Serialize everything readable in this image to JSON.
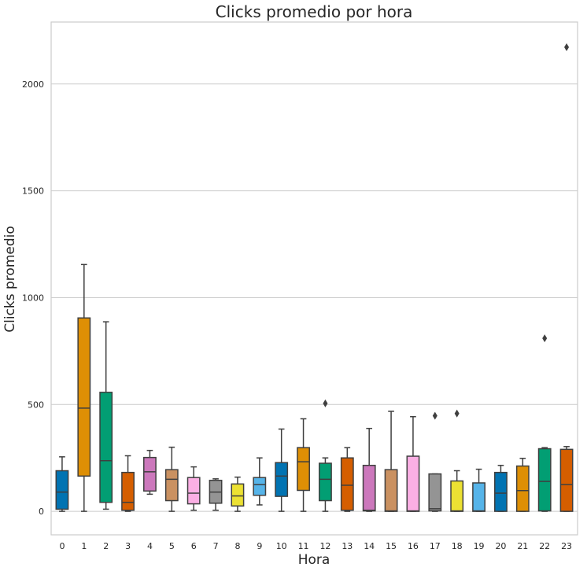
{
  "chart_data": {
    "type": "box",
    "title": "Clicks promedio por hora",
    "xlabel": "Hora",
    "ylabel": "Clicks promedio",
    "ylim": [
      -110,
      2290
    ],
    "yticks": [
      0,
      500,
      1000,
      1500,
      2000
    ],
    "grid": true,
    "categories": [
      "0",
      "1",
      "2",
      "3",
      "4",
      "5",
      "6",
      "7",
      "8",
      "9",
      "10",
      "11",
      "12",
      "13",
      "14",
      "15",
      "16",
      "17",
      "18",
      "19",
      "20",
      "21",
      "22",
      "23"
    ],
    "colors": [
      "#0173b2",
      "#de8f05",
      "#029e73",
      "#d55e00",
      "#cc78bc",
      "#ca9161",
      "#fbafe4",
      "#949494",
      "#ece133",
      "#56b4e9",
      "#0173b2",
      "#de8f05",
      "#029e73",
      "#d55e00",
      "#cc78bc",
      "#ca9161",
      "#fbafe4",
      "#949494",
      "#ece133",
      "#56b4e9",
      "#0173b2",
      "#de8f05",
      "#029e73",
      "#d55e00"
    ],
    "boxes": [
      {
        "min": 0,
        "q1": 10,
        "median": 90,
        "q3": 190,
        "max": 255,
        "outliers": []
      },
      {
        "min": 0,
        "q1": 165,
        "median": 483,
        "q3": 905,
        "max": 1155,
        "outliers": []
      },
      {
        "min": 10,
        "q1": 42,
        "median": 237,
        "q3": 557,
        "max": 887,
        "outliers": []
      },
      {
        "min": 0,
        "q1": 5,
        "median": 42,
        "q3": 182,
        "max": 260,
        "outliers": []
      },
      {
        "min": 80,
        "q1": 95,
        "median": 185,
        "q3": 252,
        "max": 285,
        "outliers": []
      },
      {
        "min": 0,
        "q1": 50,
        "median": 150,
        "q3": 195,
        "max": 300,
        "outliers": []
      },
      {
        "min": 5,
        "q1": 35,
        "median": 85,
        "q3": 158,
        "max": 208,
        "outliers": []
      },
      {
        "min": 5,
        "q1": 38,
        "median": 90,
        "q3": 145,
        "max": 152,
        "outliers": []
      },
      {
        "min": 0,
        "q1": 25,
        "median": 72,
        "q3": 128,
        "max": 160,
        "outliers": []
      },
      {
        "min": 30,
        "q1": 75,
        "median": 125,
        "q3": 158,
        "max": 250,
        "outliers": []
      },
      {
        "min": 0,
        "q1": 70,
        "median": 165,
        "q3": 228,
        "max": 385,
        "outliers": []
      },
      {
        "min": 0,
        "q1": 98,
        "median": 232,
        "q3": 298,
        "max": 433,
        "outliers": []
      },
      {
        "min": 0,
        "q1": 50,
        "median": 150,
        "q3": 225,
        "max": 250,
        "outliers": [
          505
        ]
      },
      {
        "min": 0,
        "q1": 5,
        "median": 122,
        "q3": 250,
        "max": 298,
        "outliers": []
      },
      {
        "min": 0,
        "q1": 2,
        "median": 5,
        "q3": 215,
        "max": 388,
        "outliers": []
      },
      {
        "min": 0,
        "q1": 0,
        "median": 2,
        "q3": 195,
        "max": 468,
        "outliers": []
      },
      {
        "min": 0,
        "q1": 0,
        "median": 2,
        "q3": 258,
        "max": 443,
        "outliers": []
      },
      {
        "min": 0,
        "q1": 2,
        "median": 12,
        "q3": 175,
        "max": 175,
        "outliers": [
          447
        ]
      },
      {
        "min": 0,
        "q1": 0,
        "median": 2,
        "q3": 142,
        "max": 190,
        "outliers": [
          458
        ]
      },
      {
        "min": 0,
        "q1": 0,
        "median": 2,
        "q3": 133,
        "max": 197,
        "outliers": []
      },
      {
        "min": 0,
        "q1": 0,
        "median": 85,
        "q3": 182,
        "max": 215,
        "outliers": []
      },
      {
        "min": 0,
        "q1": 0,
        "median": 97,
        "q3": 212,
        "max": 248,
        "outliers": []
      },
      {
        "min": 0,
        "q1": 2,
        "median": 140,
        "q3": 293,
        "max": 298,
        "outliers": [
          810
        ]
      },
      {
        "min": 0,
        "q1": 0,
        "median": 125,
        "q3": 290,
        "max": 303,
        "outliers": [
          2172
        ]
      }
    ]
  }
}
